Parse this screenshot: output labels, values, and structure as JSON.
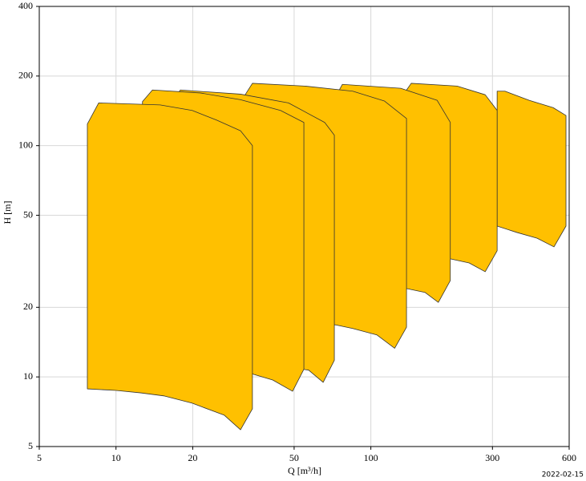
{
  "chart_data": {
    "type": "area",
    "x_label": "Q [m³/h]",
    "y_label": "H [m]",
    "date": "2022-02-15",
    "log_x": true,
    "log_y": true,
    "grid": true,
    "color": "#ffc000",
    "edge_color": "#333333",
    "xlim": [
      5,
      600
    ],
    "xticks": [
      5,
      10,
      20,
      50,
      100,
      300,
      600
    ],
    "ylim": [
      5,
      400
    ],
    "yticks": [
      5,
      10,
      20,
      50,
      100,
      200,
      400
    ],
    "series": [
      {
        "x": [
          7.72,
          10,
          12.5,
          15.5,
          19.9,
          26.6,
          30.8,
          34.3,
          34.3,
          30.8,
          24.8,
          19.9,
          14.9,
          8.55,
          7.72
        ],
        "values": [
          8.88,
          8.74,
          8.53,
          8.27,
          7.7,
          6.83,
          5.91,
          7.28,
          100,
          116,
          129,
          142,
          150,
          153,
          124
        ]
      },
      {
        "x": [
          12.7,
          13.9,
          21.4,
          30.8,
          44.2,
          54.6,
          54.6,
          49.3,
          41.2,
          34.3,
          12.7
        ],
        "values": [
          155,
          174,
          169,
          158,
          142,
          126,
          10.8,
          8.67,
          9.7,
          10.3,
          10.3
        ]
      },
      {
        "x": [
          16.6,
          17.9,
          30.8,
          47.5,
          65.9,
          71.9,
          71.9,
          65,
          57,
          47.5,
          16.6
        ],
        "values": [
          157,
          174,
          167,
          153,
          126,
          111,
          11.8,
          9.47,
          10.7,
          11.0,
          11.0
        ]
      },
      {
        "x": [
          31.9,
          34.3,
          55,
          84.9,
          113,
          138,
          138,
          124,
          105.5,
          84.9,
          72.4,
          31.9
        ],
        "values": [
          164,
          186,
          181,
          172,
          156,
          131,
          16.4,
          13.3,
          15.2,
          16.2,
          16.8,
          16.8
        ]
      },
      {
        "x": [
          73.4,
          77.3,
          131,
          182,
          205,
          205,
          184,
          163,
          138,
          73.4
        ],
        "values": [
          166,
          184,
          177,
          157,
          126,
          26.1,
          21.0,
          23.2,
          24.1,
          24.1
        ]
      },
      {
        "x": [
          136,
          144,
          218,
          281,
          313,
          313,
          281,
          243,
          205,
          136
        ],
        "values": [
          170,
          186,
          181,
          166,
          142,
          35.1,
          28.5,
          31.1,
          32.4,
          32.4
        ]
      },
      {
        "x": [
          313,
          336,
          418,
          519,
          583,
          583,
          523,
          449,
          375,
          313
        ],
        "values": [
          172,
          172,
          157,
          146,
          135,
          44.9,
          36.5,
          39.8,
          42.1,
          44.9
        ]
      }
    ]
  }
}
